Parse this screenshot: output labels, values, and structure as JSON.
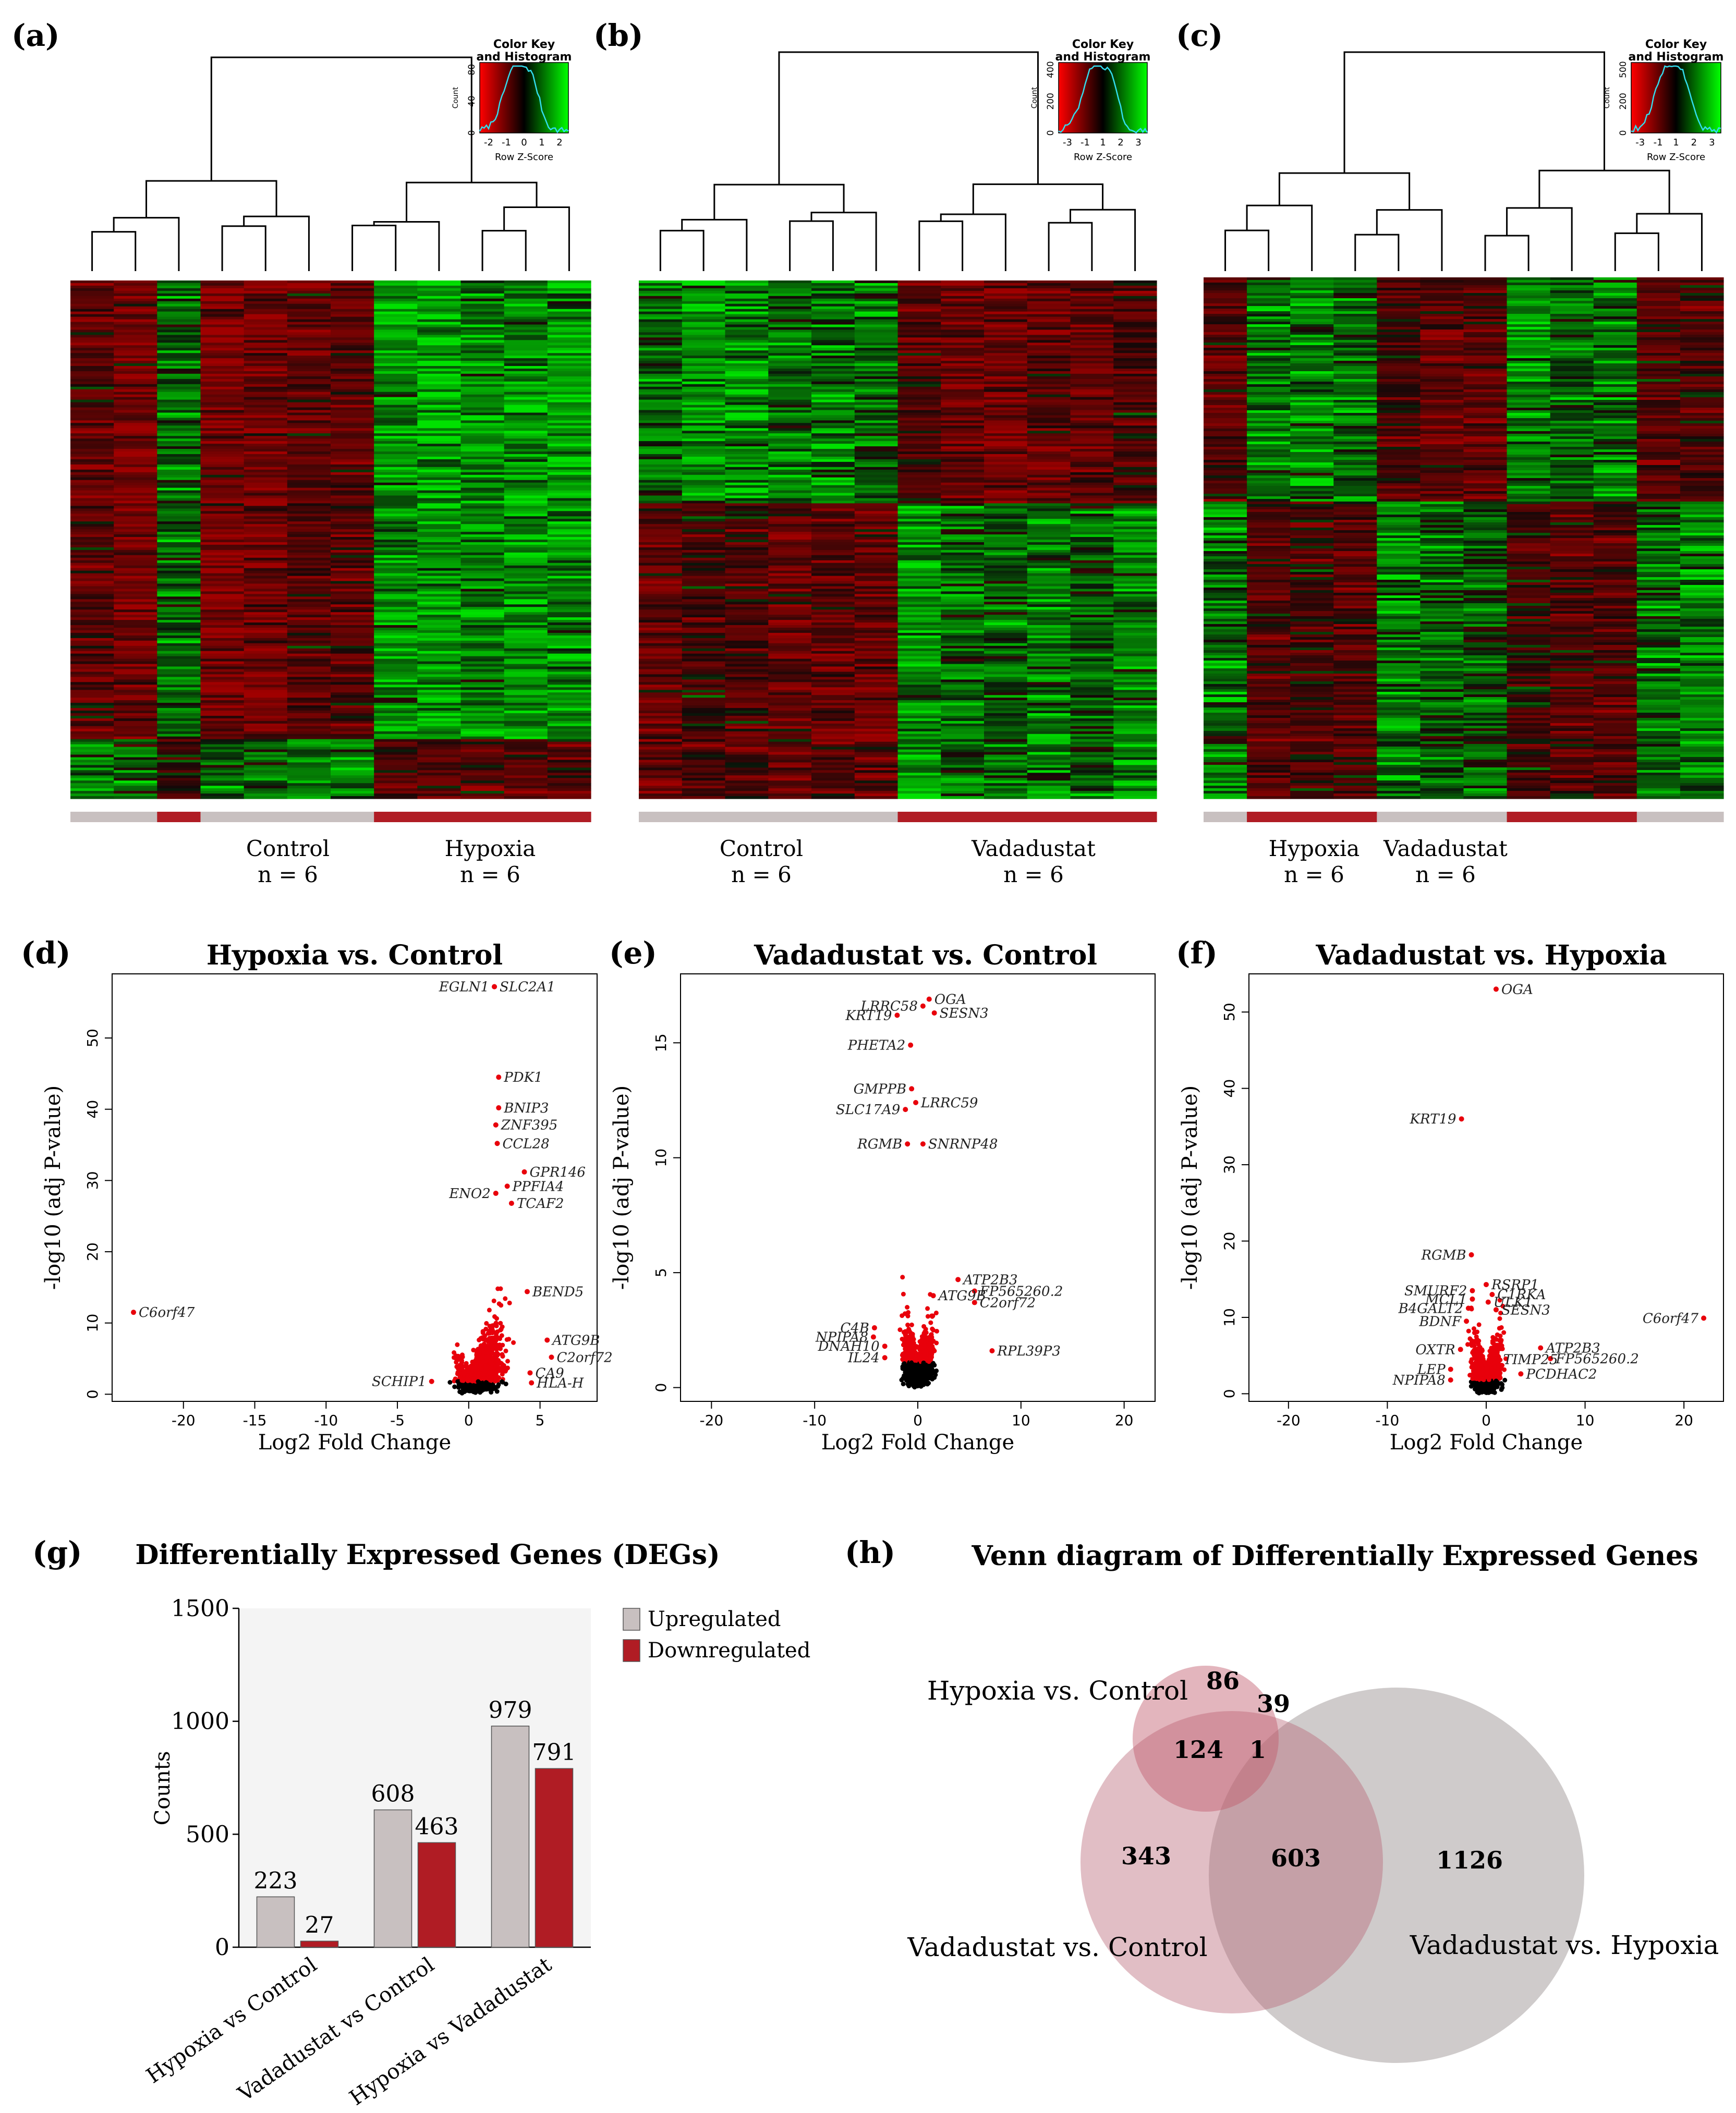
{
  "panels": {
    "a": "(a)",
    "b": "(b)",
    "c": "(c)",
    "d": "(d)",
    "e": "(e)",
    "f": "(f)",
    "g": "(g)",
    "h": "(h)"
  },
  "heatmaps": [
    {
      "id": "a",
      "key_title1": "Color Key",
      "key_title2": "and Histogram",
      "key_ylabel": "Count",
      "key_yticks": [
        "0",
        "40",
        "80"
      ],
      "key_xticks": [
        "-2",
        "-1",
        "0",
        "1",
        "2"
      ],
      "key_xlabel": "Row Z-Score",
      "groups": [
        {
          "name": "Control",
          "n": "n = 6"
        },
        {
          "name": "Hypoxia",
          "n": "n = 6"
        }
      ],
      "col_groups": [
        "c",
        "c",
        "h",
        "c",
        "c",
        "c",
        "c",
        "h",
        "h",
        "h",
        "h",
        "h"
      ]
    },
    {
      "id": "b",
      "key_title1": "Color Key",
      "key_title2": "and Histogram",
      "key_ylabel": "Count",
      "key_yticks": [
        "0",
        "200",
        "400"
      ],
      "key_xticks": [
        "-3",
        "-1",
        "1",
        "2",
        "3"
      ],
      "key_xlabel": "Row Z-Score",
      "groups": [
        {
          "name": "Control",
          "n": "n = 6"
        },
        {
          "name": "Vadadustat",
          "n": "n = 6"
        }
      ],
      "col_groups": [
        "c",
        "c",
        "c",
        "c",
        "c",
        "c",
        "h",
        "h",
        "h",
        "h",
        "h",
        "h"
      ]
    },
    {
      "id": "c",
      "key_title1": "Color Key",
      "key_title2": "and Histogram",
      "key_ylabel": "Count",
      "key_yticks": [
        "0",
        "200",
        "500"
      ],
      "key_xticks": [
        "-3",
        "-1",
        "1",
        "2",
        "3"
      ],
      "key_xlabel": "Row Z-Score",
      "groups": [
        {
          "name": "Hypoxia",
          "n": "n = 6"
        },
        {
          "name": "Vadadustat",
          "n": "n = 6"
        }
      ],
      "col_groups": [
        "c",
        "h",
        "h",
        "h",
        "c",
        "c",
        "c",
        "h",
        "h",
        "h",
        "c",
        "c"
      ]
    }
  ],
  "colors": {
    "heat_red": "#8b0000",
    "heat_green": "#00c000",
    "group_grey": "#c8c0c0",
    "group_red": "#b01c24",
    "point_red": "#e8000b",
    "bar_up": "#c8c0c0",
    "bar_down": "#b01c24",
    "venn_pink": "#c06c7c",
    "venn_grey": "#a8a0a0"
  },
  "chart_data": [
    {
      "type": "scatter",
      "id": "d",
      "title": "Hypoxia vs. Control",
      "xlabel": "Log2 Fold Change",
      "ylabel": "-log10 (adj P-value)",
      "xlim": [
        -25,
        9
      ],
      "ylim": [
        -1,
        59
      ],
      "xticks": [
        -20,
        -15,
        -10,
        -5,
        0,
        5
      ],
      "yticks": [
        0,
        10,
        20,
        30,
        40,
        50
      ],
      "labeled_points": [
        {
          "gene": "EGLN1",
          "x": 1.8,
          "y": 57.2,
          "side": "left"
        },
        {
          "gene": "SLC2A1",
          "x": 1.8,
          "y": 57.2,
          "side": "right"
        },
        {
          "gene": "PDK1",
          "x": 2.1,
          "y": 44.5,
          "side": "right"
        },
        {
          "gene": "BNIP3",
          "x": 2.1,
          "y": 40.2,
          "side": "right"
        },
        {
          "gene": "ZNF395",
          "x": 1.9,
          "y": 37.8,
          "side": "right"
        },
        {
          "gene": "CCL28",
          "x": 2.0,
          "y": 35.2,
          "side": "right"
        },
        {
          "gene": "GPR146",
          "x": 3.9,
          "y": 31.2,
          "side": "right"
        },
        {
          "gene": "PPFIA4",
          "x": 2.7,
          "y": 29.2,
          "side": "right"
        },
        {
          "gene": "ENO2",
          "x": 1.9,
          "y": 28.2,
          "side": "left"
        },
        {
          "gene": "TCAF2",
          "x": 3.0,
          "y": 26.8,
          "side": "right"
        },
        {
          "gene": "BEND5",
          "x": 4.1,
          "y": 14.4,
          "side": "right"
        },
        {
          "gene": "C6orf47",
          "x": -23.5,
          "y": 11.5,
          "side": "right"
        },
        {
          "gene": "ATG9B",
          "x": 5.5,
          "y": 7.6,
          "side": "right"
        },
        {
          "gene": "C2orf72",
          "x": 5.8,
          "y": 5.2,
          "side": "right"
        },
        {
          "gene": "CA9",
          "x": 4.3,
          "y": 3.0,
          "side": "right"
        },
        {
          "gene": "HLA-H",
          "x": 4.4,
          "y": 1.6,
          "side": "right"
        },
        {
          "gene": "SCHIP1",
          "x": -2.6,
          "y": 1.8,
          "side": "left"
        }
      ]
    },
    {
      "type": "scatter",
      "id": "e",
      "title": "Vadadustat vs. Control",
      "xlabel": "Log2 Fold Change",
      "ylabel": "-log10 (adj P-value)",
      "xlim": [
        -23,
        23
      ],
      "ylim": [
        -0.6,
        18
      ],
      "xticks": [
        -20,
        -10,
        0,
        10,
        20
      ],
      "yticks": [
        0,
        5,
        10,
        15
      ],
      "labeled_points": [
        {
          "gene": "LRRC58",
          "x": 0.5,
          "y": 16.6,
          "side": "left"
        },
        {
          "gene": "OGA",
          "x": 1.1,
          "y": 16.9,
          "side": "right"
        },
        {
          "gene": "KRT19",
          "x": -2.0,
          "y": 16.2,
          "side": "left"
        },
        {
          "gene": "SESN3",
          "x": 1.6,
          "y": 16.3,
          "side": "right"
        },
        {
          "gene": "PHETA2",
          "x": -0.7,
          "y": 14.9,
          "side": "left"
        },
        {
          "gene": "GMPPB",
          "x": -0.6,
          "y": 13.0,
          "side": "left"
        },
        {
          "gene": "LRRC59",
          "x": -0.2,
          "y": 12.4,
          "side": "right"
        },
        {
          "gene": "SLC17A9",
          "x": -1.2,
          "y": 12.1,
          "side": "left"
        },
        {
          "gene": "RGMB",
          "x": -1.0,
          "y": 10.6,
          "side": "left"
        },
        {
          "gene": "SNRNP48",
          "x": 0.5,
          "y": 10.6,
          "side": "right"
        },
        {
          "gene": "ATP2B3",
          "x": 3.9,
          "y": 4.7,
          "side": "right"
        },
        {
          "gene": "FP565260.2",
          "x": 5.5,
          "y": 4.2,
          "side": "right"
        },
        {
          "gene": "ATG9B",
          "x": 1.5,
          "y": 4.0,
          "side": "right"
        },
        {
          "gene": "C2orf72",
          "x": 5.5,
          "y": 3.7,
          "side": "right"
        },
        {
          "gene": "RPL39P3",
          "x": 7.2,
          "y": 1.6,
          "side": "right"
        },
        {
          "gene": "C4B",
          "x": -4.2,
          "y": 2.6,
          "side": "left"
        },
        {
          "gene": "NPIPA8",
          "x": -4.3,
          "y": 2.2,
          "side": "left"
        },
        {
          "gene": "DNAH10",
          "x": -3.2,
          "y": 1.8,
          "side": "left"
        },
        {
          "gene": "IL24",
          "x": -3.2,
          "y": 1.3,
          "side": "left"
        }
      ]
    },
    {
      "type": "scatter",
      "id": "f",
      "title": "Vadadustat vs. Hypoxia",
      "xlabel": "Log2 Fold Change",
      "ylabel": "-log10 (adj P-value)",
      "xlim": [
        -24,
        24
      ],
      "ylim": [
        -1,
        55
      ],
      "xticks": [
        -20,
        -10,
        0,
        10,
        20
      ],
      "yticks": [
        0,
        10,
        20,
        30,
        40,
        50
      ],
      "labeled_points": [
        {
          "gene": "OGA",
          "x": 1.0,
          "y": 53.0,
          "side": "right"
        },
        {
          "gene": "KRT19",
          "x": -2.5,
          "y": 36.0,
          "side": "left"
        },
        {
          "gene": "RGMB",
          "x": -1.5,
          "y": 18.2,
          "side": "left"
        },
        {
          "gene": "RSRP1",
          "x": 0.0,
          "y": 14.3,
          "side": "right"
        },
        {
          "gene": "SMURF2",
          "x": -1.4,
          "y": 13.5,
          "side": "left"
        },
        {
          "gene": "C1RKA",
          "x": 0.6,
          "y": 13.0,
          "side": "right"
        },
        {
          "gene": "MCL1",
          "x": -1.4,
          "y": 12.4,
          "side": "left"
        },
        {
          "gene": "ULK1",
          "x": 0.2,
          "y": 12.0,
          "side": "right"
        },
        {
          "gene": "B4GALT2",
          "x": -1.8,
          "y": 11.2,
          "side": "left"
        },
        {
          "gene": "SESN3",
          "x": 1.0,
          "y": 11.0,
          "side": "right"
        },
        {
          "gene": "BDNF",
          "x": -2.0,
          "y": 9.5,
          "side": "left"
        },
        {
          "gene": "C6orf47",
          "x": 22.0,
          "y": 9.9,
          "side": "left"
        },
        {
          "gene": "ATP2B3",
          "x": 5.5,
          "y": 6.0,
          "side": "right"
        },
        {
          "gene": "FP565260.2",
          "x": 6.5,
          "y": 4.6,
          "side": "right"
        },
        {
          "gene": "OXTR",
          "x": -2.6,
          "y": 5.8,
          "side": "left"
        },
        {
          "gene": "TIMP25",
          "x": 1.2,
          "y": 4.5,
          "side": "right"
        },
        {
          "gene": "PCDHAC2",
          "x": 3.5,
          "y": 2.6,
          "side": "right"
        },
        {
          "gene": "LEP",
          "x": -3.6,
          "y": 3.2,
          "side": "left"
        },
        {
          "gene": "NPIPA8",
          "x": -3.6,
          "y": 1.8,
          "side": "left"
        }
      ]
    },
    {
      "type": "bar",
      "id": "g",
      "title": "Differentially Expressed Genes (DEGs)",
      "ylabel": "Counts",
      "ylim": [
        0,
        1500
      ],
      "yticks": [
        0,
        500,
        1000,
        1500
      ],
      "categories": [
        "Hypoxia vs Control",
        "Vadadustat vs Control",
        "Hypoxia vs Vadadustat"
      ],
      "series": [
        {
          "name": "Upregulated",
          "values": [
            223,
            608,
            979
          ]
        },
        {
          "name": "Downregulated",
          "values": [
            27,
            463,
            791
          ]
        }
      ]
    },
    {
      "type": "venn",
      "id": "h",
      "title": "Venn diagram of Differentially Expressed Genes",
      "sets": [
        {
          "name": "Hypoxia vs. Control"
        },
        {
          "name": "Vadadustat vs. Control"
        },
        {
          "name": "Vadadustat vs. Hypoxia"
        }
      ],
      "regions": {
        "hc_only": "86",
        "hc_vh": "39",
        "hc_vc": "124",
        "all": "1",
        "vc_only": "343",
        "vc_vh": "603",
        "vh_only": "1126"
      }
    }
  ]
}
